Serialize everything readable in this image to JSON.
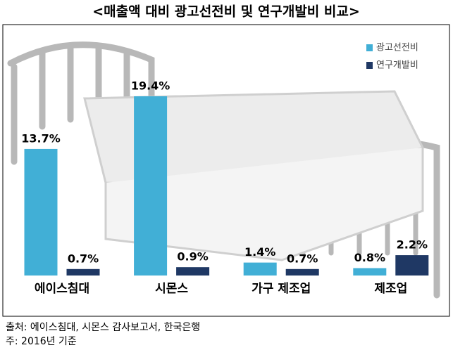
{
  "chart_data": {
    "type": "bar",
    "title": "<매출액 대비 광고선전비 및 연구개발비 비교>",
    "categories": [
      "에이스침대",
      "시몬스",
      "가구 제조업",
      "제조업"
    ],
    "series": [
      {
        "name": "광고선전비",
        "color": "#41afd6",
        "values": [
          13.7,
          19.4,
          1.4,
          0.8
        ],
        "value_labels": [
          "13.7%",
          "19.4%",
          "1.4%",
          "0.8%"
        ]
      },
      {
        "name": "연구개발비",
        "color": "#1f3864",
        "values": [
          0.7,
          0.9,
          0.7,
          2.2
        ],
        "value_labels": [
          "0.7%",
          "0.9%",
          "0.7%",
          "2.2%"
        ]
      }
    ],
    "legend": "upper right",
    "source": "출처: 에이스침대, 시몬스 감사보고서, 한국은행",
    "note": "주: 2016년 기준"
  }
}
